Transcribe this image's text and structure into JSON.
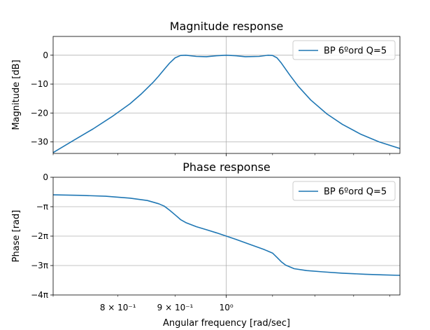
{
  "chart_data": [
    {
      "type": "line",
      "title": "Magnitude response",
      "xlabel": "",
      "ylabel": "Magnitude [dB]",
      "xscale": "log",
      "xlim": [
        0.7,
        1.43
      ],
      "ylim": [
        -34,
        6.5
      ],
      "grid": true,
      "legend_position": "top-right",
      "yticks": [
        0,
        -10,
        -20,
        -30
      ],
      "ytick_labels": [
        "0",
        "−10",
        "−20",
        "−30"
      ],
      "series": [
        {
          "name": "BP 6ºord Q=5",
          "color": "#1f77b4",
          "x": [
            0.7,
            0.73,
            0.76,
            0.79,
            0.82,
            0.84,
            0.86,
            0.87,
            0.88,
            0.89,
            0.9,
            0.91,
            0.92,
            0.94,
            0.96,
            0.98,
            1.0,
            1.02,
            1.04,
            1.07,
            1.09,
            1.1,
            1.11,
            1.12,
            1.14,
            1.16,
            1.19,
            1.23,
            1.27,
            1.32,
            1.37,
            1.43
          ],
          "y": [
            -33.7,
            -29.5,
            -25.5,
            -21.3,
            -16.8,
            -13.3,
            -9.4,
            -7.2,
            -4.9,
            -2.7,
            -0.9,
            -0.1,
            0.0,
            -0.4,
            -0.5,
            -0.2,
            0.0,
            -0.2,
            -0.5,
            -0.4,
            0.0,
            -0.1,
            -0.9,
            -2.7,
            -6.9,
            -10.8,
            -15.5,
            -20.3,
            -23.9,
            -27.4,
            -30.0,
            -32.3
          ]
        }
      ]
    },
    {
      "type": "line",
      "title": "Phase response",
      "xlabel": "Angular frequency [rad/sec]",
      "ylabel": "Phase [rad]",
      "xscale": "log",
      "xlim": [
        0.7,
        1.43
      ],
      "ylim": [
        -12.566,
        0
      ],
      "grid": true,
      "legend_position": "top-right",
      "yticks": [
        0,
        -3.1416,
        -6.2832,
        -9.4248,
        -12.566
      ],
      "ytick_labels": [
        "0",
        "−π",
        "−2π",
        "−3π",
        "−4π"
      ],
      "xticks": [
        0.8,
        0.9,
        1.0
      ],
      "xtick_labels": [
        "8 × 10⁻¹",
        "9 × 10⁻¹",
        "10⁰"
      ],
      "series": [
        {
          "name": "BP 6ºord Q=5",
          "color": "#1f77b4",
          "x": [
            0.7,
            0.74,
            0.78,
            0.82,
            0.85,
            0.87,
            0.88,
            0.89,
            0.9,
            0.91,
            0.92,
            0.94,
            0.96,
            0.98,
            1.0,
            1.02,
            1.05,
            1.08,
            1.1,
            1.11,
            1.12,
            1.13,
            1.15,
            1.18,
            1.22,
            1.27,
            1.33,
            1.38,
            1.43
          ],
          "y": [
            -1.88,
            -1.93,
            -2.03,
            -2.23,
            -2.48,
            -2.83,
            -3.08,
            -3.52,
            -4.02,
            -4.52,
            -4.84,
            -5.27,
            -5.6,
            -5.93,
            -6.28,
            -6.63,
            -7.17,
            -7.7,
            -8.09,
            -8.55,
            -9.02,
            -9.38,
            -9.76,
            -9.96,
            -10.1,
            -10.24,
            -10.35,
            -10.42,
            -10.47
          ]
        }
      ]
    }
  ]
}
